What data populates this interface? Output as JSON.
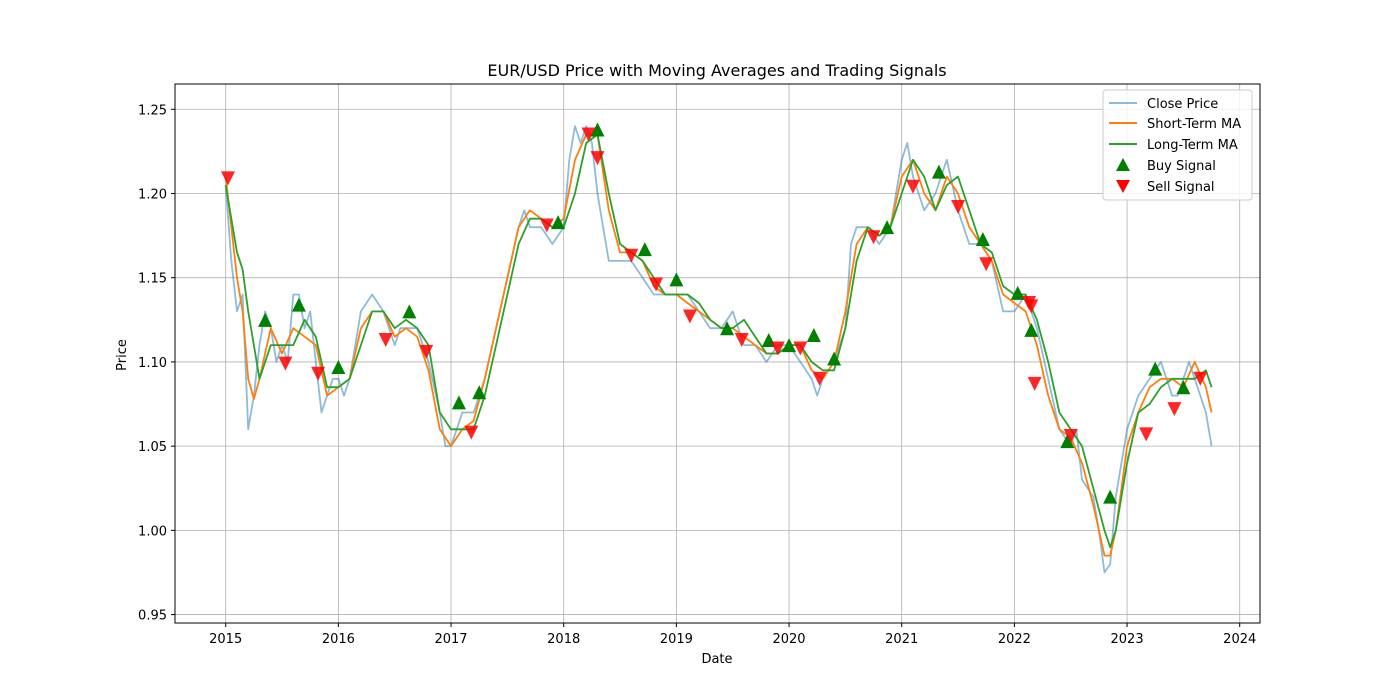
{
  "chart_data": {
    "type": "line",
    "title": "EUR/USD Price with Moving Averages and Trading Signals",
    "xlabel": "Date",
    "ylabel": "Price",
    "xlim": [
      2014.55,
      2024.18
    ],
    "ylim": [
      0.945,
      1.265
    ],
    "x_ticks": [
      2015,
      2016,
      2017,
      2018,
      2019,
      2020,
      2021,
      2022,
      2023,
      2024
    ],
    "y_ticks": [
      0.95,
      1.0,
      1.05,
      1.1,
      1.15,
      1.2,
      1.25
    ],
    "y_tick_labels": [
      "0.95",
      "1.00",
      "1.05",
      "1.10",
      "1.15",
      "1.20",
      "1.25"
    ],
    "grid": true,
    "legend_position": "top-right",
    "colors": {
      "close": "#1f77b4",
      "short": "#ff7f0e",
      "long": "#2ca02c",
      "buy": "#008000",
      "sell": "#ff0000"
    },
    "series": [
      {
        "name": "Close Price",
        "x": [
          2015.0,
          2015.05,
          2015.1,
          2015.15,
          2015.2,
          2015.25,
          2015.3,
          2015.35,
          2015.4,
          2015.45,
          2015.5,
          2015.55,
          2015.6,
          2015.65,
          2015.7,
          2015.75,
          2015.8,
          2015.85,
          2015.9,
          2015.95,
          2016.0,
          2016.05,
          2016.1,
          2016.2,
          2016.3,
          2016.4,
          2016.5,
          2016.55,
          2016.6,
          2016.7,
          2016.8,
          2016.9,
          2016.95,
          2017.0,
          2017.05,
          2017.1,
          2017.2,
          2017.3,
          2017.4,
          2017.5,
          2017.6,
          2017.65,
          2017.7,
          2017.8,
          2017.9,
          2018.0,
          2018.05,
          2018.1,
          2018.15,
          2018.2,
          2018.25,
          2018.3,
          2018.35,
          2018.4,
          2018.5,
          2018.6,
          2018.7,
          2018.8,
          2018.9,
          2019.0,
          2019.1,
          2019.2,
          2019.3,
          2019.4,
          2019.5,
          2019.6,
          2019.7,
          2019.8,
          2019.9,
          2020.0,
          2020.1,
          2020.2,
          2020.25,
          2020.3,
          2020.4,
          2020.5,
          2020.55,
          2020.6,
          2020.7,
          2020.8,
          2020.9,
          2021.0,
          2021.05,
          2021.1,
          2021.2,
          2021.3,
          2021.35,
          2021.4,
          2021.5,
          2021.6,
          2021.7,
          2021.8,
          2021.9,
          2022.0,
          2022.1,
          2022.2,
          2022.3,
          2022.4,
          2022.5,
          2022.55,
          2022.6,
          2022.7,
          2022.75,
          2022.8,
          2022.85,
          2022.9,
          2023.0,
          2023.1,
          2023.2,
          2023.3,
          2023.4,
          2023.45,
          2023.5,
          2023.55,
          2023.6,
          2023.65,
          2023.7,
          2023.75
        ],
        "values": [
          1.205,
          1.16,
          1.13,
          1.14,
          1.06,
          1.08,
          1.11,
          1.13,
          1.12,
          1.1,
          1.11,
          1.1,
          1.14,
          1.14,
          1.12,
          1.13,
          1.1,
          1.07,
          1.08,
          1.09,
          1.09,
          1.08,
          1.09,
          1.13,
          1.14,
          1.13,
          1.11,
          1.12,
          1.12,
          1.12,
          1.1,
          1.07,
          1.05,
          1.05,
          1.06,
          1.07,
          1.07,
          1.09,
          1.12,
          1.15,
          1.18,
          1.19,
          1.18,
          1.18,
          1.17,
          1.18,
          1.22,
          1.24,
          1.23,
          1.24,
          1.23,
          1.2,
          1.18,
          1.16,
          1.16,
          1.16,
          1.15,
          1.14,
          1.14,
          1.14,
          1.14,
          1.13,
          1.12,
          1.12,
          1.13,
          1.11,
          1.11,
          1.1,
          1.11,
          1.11,
          1.1,
          1.09,
          1.08,
          1.09,
          1.1,
          1.12,
          1.17,
          1.18,
          1.18,
          1.17,
          1.18,
          1.22,
          1.23,
          1.21,
          1.19,
          1.2,
          1.21,
          1.22,
          1.19,
          1.17,
          1.17,
          1.16,
          1.13,
          1.13,
          1.14,
          1.12,
          1.09,
          1.06,
          1.05,
          1.06,
          1.03,
          1.02,
          1.0,
          0.975,
          0.98,
          1.02,
          1.06,
          1.08,
          1.09,
          1.1,
          1.08,
          1.08,
          1.09,
          1.1,
          1.09,
          1.08,
          1.07,
          1.05
        ]
      },
      {
        "name": "Short-Term MA",
        "x": [
          2015.0,
          2015.1,
          2015.15,
          2015.2,
          2015.25,
          2015.3,
          2015.4,
          2015.5,
          2015.6,
          2015.7,
          2015.8,
          2015.9,
          2016.0,
          2016.1,
          2016.2,
          2016.3,
          2016.4,
          2016.5,
          2016.6,
          2016.7,
          2016.8,
          2016.9,
          2017.0,
          2017.1,
          2017.2,
          2017.3,
          2017.4,
          2017.5,
          2017.6,
          2017.7,
          2017.8,
          2017.9,
          2018.0,
          2018.1,
          2018.2,
          2018.3,
          2018.4,
          2018.5,
          2018.6,
          2018.7,
          2018.8,
          2018.9,
          2019.0,
          2019.1,
          2019.2,
          2019.3,
          2019.4,
          2019.5,
          2019.6,
          2019.7,
          2019.8,
          2019.9,
          2020.0,
          2020.1,
          2020.2,
          2020.3,
          2020.4,
          2020.5,
          2020.6,
          2020.7,
          2020.8,
          2020.9,
          2021.0,
          2021.1,
          2021.2,
          2021.3,
          2021.4,
          2021.5,
          2021.6,
          2021.7,
          2021.8,
          2021.9,
          2022.0,
          2022.1,
          2022.2,
          2022.3,
          2022.4,
          2022.5,
          2022.6,
          2022.7,
          2022.8,
          2022.85,
          2022.9,
          2023.0,
          2023.1,
          2023.2,
          2023.3,
          2023.4,
          2023.5,
          2023.6,
          2023.7,
          2023.75
        ],
        "values": [
          1.21,
          1.15,
          1.13,
          1.09,
          1.078,
          1.09,
          1.12,
          1.105,
          1.12,
          1.115,
          1.11,
          1.08,
          1.085,
          1.09,
          1.12,
          1.13,
          1.13,
          1.115,
          1.12,
          1.115,
          1.095,
          1.06,
          1.05,
          1.06,
          1.065,
          1.09,
          1.12,
          1.15,
          1.18,
          1.19,
          1.185,
          1.18,
          1.185,
          1.22,
          1.235,
          1.235,
          1.19,
          1.165,
          1.165,
          1.16,
          1.145,
          1.14,
          1.14,
          1.135,
          1.13,
          1.125,
          1.12,
          1.12,
          1.115,
          1.11,
          1.105,
          1.105,
          1.11,
          1.11,
          1.095,
          1.09,
          1.1,
          1.13,
          1.17,
          1.18,
          1.175,
          1.18,
          1.21,
          1.22,
          1.2,
          1.19,
          1.21,
          1.2,
          1.18,
          1.17,
          1.16,
          1.14,
          1.135,
          1.13,
          1.11,
          1.08,
          1.06,
          1.055,
          1.04,
          1.015,
          0.985,
          0.985,
          1.0,
          1.05,
          1.07,
          1.085,
          1.09,
          1.09,
          1.085,
          1.1,
          1.085,
          1.07
        ]
      },
      {
        "name": "Long-Term MA",
        "x": [
          2015.0,
          2015.1,
          2015.15,
          2015.2,
          2015.3,
          2015.4,
          2015.5,
          2015.6,
          2015.7,
          2015.8,
          2015.9,
          2016.0,
          2016.1,
          2016.2,
          2016.3,
          2016.4,
          2016.5,
          2016.6,
          2016.7,
          2016.8,
          2016.9,
          2017.0,
          2017.1,
          2017.2,
          2017.3,
          2017.4,
          2017.5,
          2017.6,
          2017.7,
          2017.8,
          2017.9,
          2018.0,
          2018.1,
          2018.2,
          2018.3,
          2018.4,
          2018.5,
          2018.6,
          2018.7,
          2018.8,
          2018.9,
          2019.0,
          2019.1,
          2019.2,
          2019.3,
          2019.4,
          2019.5,
          2019.6,
          2019.7,
          2019.8,
          2019.9,
          2020.0,
          2020.1,
          2020.2,
          2020.3,
          2020.4,
          2020.5,
          2020.6,
          2020.7,
          2020.8,
          2020.9,
          2021.0,
          2021.1,
          2021.2,
          2021.3,
          2021.4,
          2021.5,
          2021.6,
          2021.7,
          2021.8,
          2021.9,
          2022.0,
          2022.1,
          2022.2,
          2022.3,
          2022.4,
          2022.5,
          2022.6,
          2022.7,
          2022.8,
          2022.85,
          2022.9,
          2023.0,
          2023.1,
          2023.2,
          2023.3,
          2023.4,
          2023.5,
          2023.6,
          2023.7,
          2023.75
        ],
        "values": [
          1.205,
          1.165,
          1.155,
          1.13,
          1.09,
          1.11,
          1.11,
          1.11,
          1.125,
          1.115,
          1.085,
          1.085,
          1.09,
          1.11,
          1.13,
          1.13,
          1.12,
          1.125,
          1.12,
          1.11,
          1.07,
          1.06,
          1.06,
          1.06,
          1.08,
          1.11,
          1.14,
          1.17,
          1.185,
          1.185,
          1.18,
          1.18,
          1.2,
          1.23,
          1.235,
          1.2,
          1.17,
          1.165,
          1.16,
          1.15,
          1.14,
          1.14,
          1.14,
          1.135,
          1.125,
          1.12,
          1.12,
          1.125,
          1.115,
          1.105,
          1.105,
          1.11,
          1.11,
          1.1,
          1.095,
          1.095,
          1.12,
          1.16,
          1.18,
          1.175,
          1.18,
          1.2,
          1.22,
          1.21,
          1.19,
          1.205,
          1.21,
          1.19,
          1.17,
          1.165,
          1.145,
          1.14,
          1.14,
          1.125,
          1.1,
          1.07,
          1.06,
          1.05,
          1.025,
          1.0,
          0.99,
          1.0,
          1.04,
          1.07,
          1.075,
          1.085,
          1.09,
          1.09,
          1.09,
          1.095,
          1.085
        ]
      }
    ],
    "buy_signals": {
      "name": "Buy Signal",
      "x": [
        2015.35,
        2015.65,
        2016.0,
        2016.63,
        2017.07,
        2017.25,
        2017.95,
        2018.3,
        2018.72,
        2019.0,
        2019.45,
        2019.82,
        2020.0,
        2020.22,
        2020.4,
        2020.87,
        2021.33,
        2021.72,
        2022.03,
        2022.15,
        2022.47,
        2022.85,
        2023.25,
        2023.5
      ],
      "y": [
        1.125,
        1.134,
        1.097,
        1.13,
        1.076,
        1.082,
        1.183,
        1.238,
        1.167,
        1.149,
        1.12,
        1.113,
        1.11,
        1.116,
        1.102,
        1.18,
        1.213,
        1.173,
        1.141,
        1.119,
        1.053,
        1.02,
        1.096,
        1.085
      ]
    },
    "sell_signals": {
      "name": "Sell Signal",
      "x": [
        2015.02,
        2015.53,
        2015.82,
        2016.42,
        2016.78,
        2017.18,
        2017.85,
        2018.22,
        2018.3,
        2018.6,
        2018.82,
        2019.12,
        2019.58,
        2019.9,
        2020.1,
        2020.27,
        2020.75,
        2021.1,
        2021.5,
        2021.75,
        2022.13,
        2022.15,
        2022.18,
        2022.5,
        2023.17,
        2023.42,
        2023.65
      ],
      "y": [
        1.209,
        1.099,
        1.093,
        1.113,
        1.106,
        1.058,
        1.181,
        1.235,
        1.221,
        1.163,
        1.146,
        1.127,
        1.113,
        1.108,
        1.108,
        1.09,
        1.174,
        1.204,
        1.192,
        1.158,
        1.135,
        1.133,
        1.087,
        1.056,
        1.057,
        1.072,
        1.09
      ]
    }
  }
}
